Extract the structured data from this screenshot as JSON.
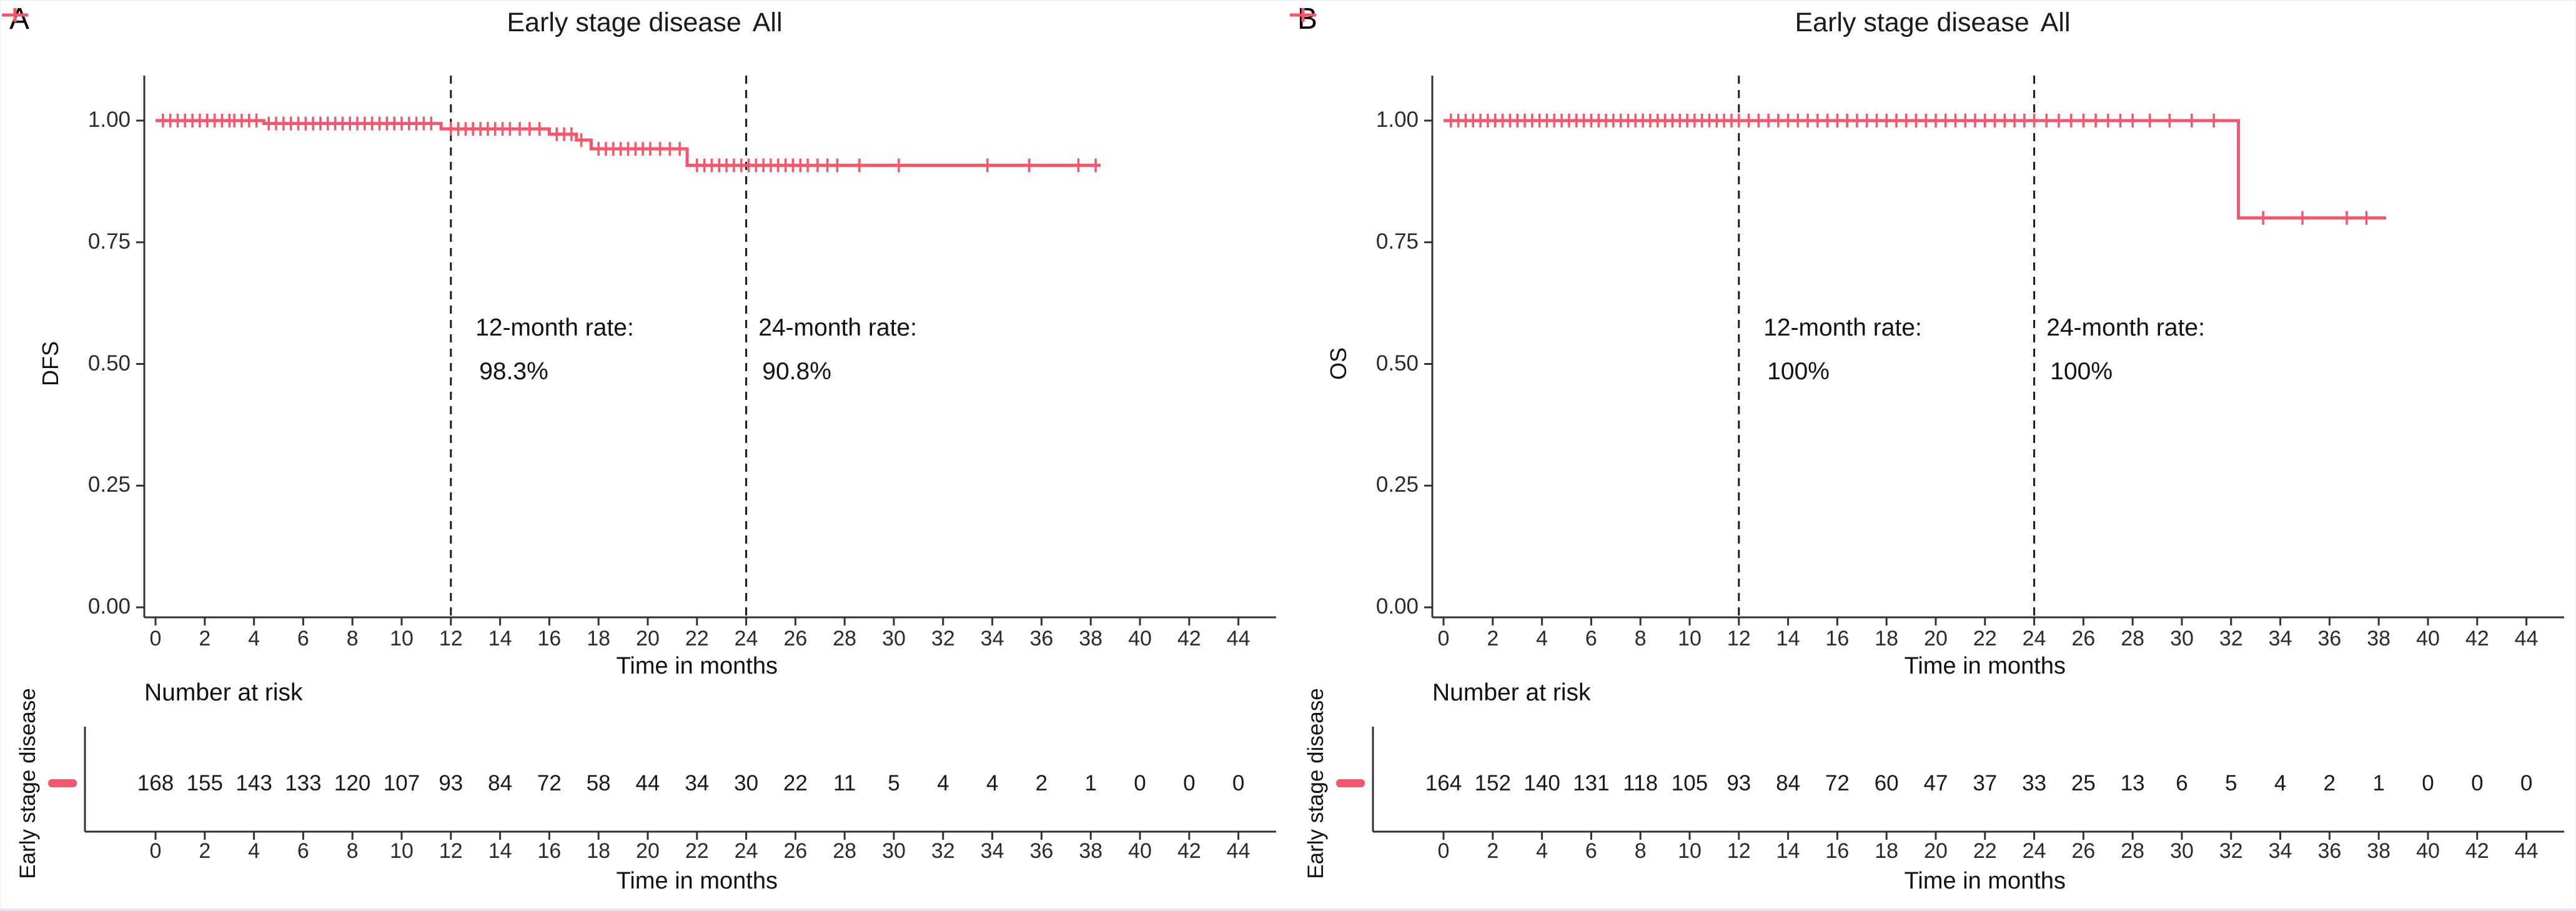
{
  "colors": {
    "curve": "#F5566B",
    "axis": "#333333",
    "dashed_line": "#1a1a1a",
    "text": "#111111"
  },
  "chart_data": [
    {
      "type": "line",
      "subtype": "kaplan-meier-step",
      "panel": "A",
      "title": "Early stage disease",
      "legend": {
        "label": "All",
        "marker": "plus-cross",
        "position": "top-center"
      },
      "xlabel": "Time in months",
      "ylabel": "DFS",
      "xlim": [
        0,
        44
      ],
      "ylim": [
        0.0,
        1.0
      ],
      "grid": "off",
      "x_ticks": [
        0,
        2,
        4,
        6,
        8,
        10,
        12,
        14,
        16,
        18,
        20,
        22,
        24,
        26,
        28,
        30,
        32,
        34,
        36,
        38,
        40,
        42,
        44
      ],
      "y_ticks": [
        {
          "label": "1.00",
          "v": 1.0
        },
        {
          "label": "0.75",
          "v": 0.75
        },
        {
          "label": "0.50",
          "v": 0.5
        },
        {
          "label": "0.25",
          "v": 0.25
        },
        {
          "label": "0.00",
          "v": 0.0
        }
      ],
      "reference_lines_x": [
        12,
        24
      ],
      "annotations": [
        {
          "label": "12-month rate:",
          "value": "98.3%",
          "x_month": 13.0
        },
        {
          "label": "24-month rate:",
          "value": "90.8%",
          "x_month": 24.5
        }
      ],
      "step_points": [
        [
          0,
          1.0
        ],
        [
          4.4,
          0.994
        ],
        [
          11.6,
          0.983
        ],
        [
          16.0,
          0.972
        ],
        [
          17.1,
          0.96
        ],
        [
          17.7,
          0.942
        ],
        [
          21.6,
          0.908
        ]
      ],
      "curve_end_month": 38.4,
      "censor_times": [
        0.3,
        0.6,
        0.9,
        1.2,
        1.5,
        1.8,
        2.1,
        2.4,
        2.7,
        3.0,
        3.2,
        3.5,
        3.8,
        4.1,
        4.6,
        4.9,
        5.2,
        5.5,
        5.8,
        6.1,
        6.4,
        6.7,
        7.0,
        7.3,
        7.6,
        7.9,
        8.2,
        8.5,
        8.8,
        9.1,
        9.4,
        9.7,
        10.0,
        10.3,
        10.6,
        10.9,
        11.2,
        12.0,
        12.3,
        12.6,
        12.9,
        13.2,
        13.5,
        13.8,
        14.1,
        14.4,
        14.8,
        15.2,
        15.6,
        16.3,
        16.6,
        16.9,
        17.3,
        18.0,
        18.3,
        18.6,
        18.9,
        19.2,
        19.5,
        19.8,
        20.1,
        20.5,
        20.9,
        21.3,
        22.0,
        22.3,
        22.6,
        22.9,
        23.2,
        23.5,
        23.8,
        24.1,
        24.4,
        24.7,
        25.0,
        25.3,
        25.6,
        25.9,
        26.2,
        26.5,
        26.9,
        27.3,
        27.7,
        28.6,
        30.2,
        33.8,
        35.5,
        37.5,
        38.2
      ],
      "risk_table": {
        "title": "Number at risk",
        "group": "Early stage disease",
        "times": [
          0,
          2,
          4,
          6,
          8,
          10,
          12,
          14,
          16,
          18,
          20,
          22,
          24,
          26,
          28,
          30,
          32,
          34,
          36,
          38,
          40,
          42,
          44
        ],
        "counts": [
          168,
          155,
          143,
          133,
          120,
          107,
          93,
          84,
          72,
          58,
          44,
          34,
          30,
          22,
          11,
          5,
          4,
          4,
          2,
          1,
          0,
          0,
          0
        ]
      }
    },
    {
      "type": "line",
      "subtype": "kaplan-meier-step",
      "panel": "B",
      "title": "Early stage disease",
      "legend": {
        "label": "All",
        "marker": "plus-cross",
        "position": "top-center"
      },
      "xlabel": "Time in months",
      "ylabel": "OS",
      "xlim": [
        0,
        44
      ],
      "ylim": [
        0.0,
        1.0
      ],
      "grid": "off",
      "x_ticks": [
        0,
        2,
        4,
        6,
        8,
        10,
        12,
        14,
        16,
        18,
        20,
        22,
        24,
        26,
        28,
        30,
        32,
        34,
        36,
        38,
        40,
        42,
        44
      ],
      "y_ticks": [
        {
          "label": "1.00",
          "v": 1.0
        },
        {
          "label": "0.75",
          "v": 0.75
        },
        {
          "label": "0.50",
          "v": 0.5
        },
        {
          "label": "0.25",
          "v": 0.25
        },
        {
          "label": "0.00",
          "v": 0.0
        }
      ],
      "reference_lines_x": [
        12,
        24
      ],
      "annotations": [
        {
          "label": "12-month rate:",
          "value": "100%",
          "x_month": 13.0
        },
        {
          "label": "24-month rate:",
          "value": "100%",
          "x_month": 24.5
        }
      ],
      "step_points": [
        [
          0,
          1.0
        ],
        [
          32.3,
          0.8
        ]
      ],
      "curve_end_month": 38.3,
      "censor_times": [
        0.3,
        0.6,
        0.9,
        1.2,
        1.5,
        1.8,
        2.1,
        2.4,
        2.7,
        3.0,
        3.3,
        3.6,
        3.9,
        4.2,
        4.5,
        4.8,
        5.1,
        5.4,
        5.7,
        6.0,
        6.3,
        6.6,
        6.9,
        7.2,
        7.5,
        7.8,
        8.1,
        8.4,
        8.7,
        9.0,
        9.3,
        9.6,
        9.9,
        10.2,
        10.5,
        10.8,
        11.1,
        11.4,
        11.7,
        12.0,
        12.4,
        12.8,
        13.2,
        13.6,
        14.0,
        14.4,
        14.8,
        15.2,
        15.6,
        16.0,
        16.4,
        16.8,
        17.2,
        17.6,
        18.0,
        18.4,
        18.8,
        19.2,
        19.6,
        20.0,
        20.4,
        20.8,
        21.2,
        21.6,
        22.0,
        22.4,
        22.8,
        23.2,
        23.6,
        24.0,
        24.5,
        25.0,
        25.5,
        26.0,
        26.5,
        27.0,
        27.5,
        28.0,
        28.7,
        29.5,
        30.4,
        31.3,
        33.3,
        34.9,
        36.7,
        37.5
      ],
      "risk_table": {
        "title": "Number at risk",
        "group": "Early stage disease",
        "times": [
          0,
          2,
          4,
          6,
          8,
          10,
          12,
          14,
          16,
          18,
          20,
          22,
          24,
          26,
          28,
          30,
          32,
          34,
          36,
          38,
          40,
          42,
          44
        ],
        "counts": [
          164,
          152,
          140,
          131,
          118,
          105,
          93,
          84,
          72,
          60,
          47,
          37,
          33,
          25,
          13,
          6,
          5,
          4,
          2,
          1,
          0,
          0,
          0
        ]
      }
    }
  ]
}
